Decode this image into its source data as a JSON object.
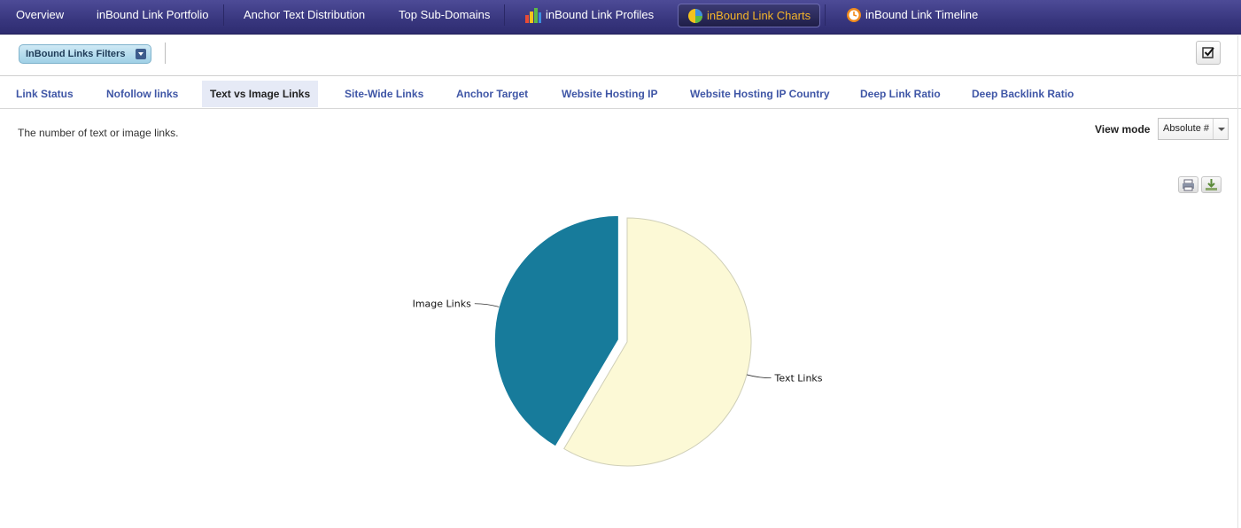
{
  "top_nav": {
    "items": [
      {
        "label": "Overview"
      },
      {
        "label": "inBound Link Portfolio"
      },
      {
        "label": "Anchor Text Distribution"
      },
      {
        "label": "Top Sub-Domains"
      },
      {
        "label": "inBound Link Profiles",
        "icon": "bar-chart-icon"
      },
      {
        "label": "inBound Link Charts",
        "icon": "pie-chart-icon",
        "active": true
      },
      {
        "label": "inBound Link Timeline",
        "icon": "clock-icon"
      }
    ]
  },
  "filter_bar": {
    "filter_button_label": "InBound Links Filters",
    "check_icon": "checkbox-icon"
  },
  "tabs": [
    {
      "label": "Link Status"
    },
    {
      "label": "Nofollow links"
    },
    {
      "label": "Text vs Image Links",
      "active": true
    },
    {
      "label": "Site-Wide Links"
    },
    {
      "label": "Anchor Target"
    },
    {
      "label": "Website Hosting IP"
    },
    {
      "label": "Website Hosting IP Country"
    },
    {
      "label": "Deep Link Ratio"
    },
    {
      "label": "Deep Backlink Ratio"
    }
  ],
  "content": {
    "description": "The number of text or image links.",
    "view_mode_label": "View mode",
    "view_mode_value": "Absolute #",
    "print_icon": "print-icon",
    "download_icon": "download-icon"
  },
  "colors": {
    "nav_bg": "#38367e",
    "active_nav_text": "#f5b52a",
    "tab_link": "#3f56a6",
    "image_slice": "#177b9b",
    "text_slice": "#fcf9d6"
  },
  "chart_data": {
    "type": "pie",
    "slices": [
      {
        "label": "Image Links",
        "value": 41.5
      },
      {
        "label": "Text Links",
        "value": 58.5
      }
    ],
    "exploded": "Image Links"
  }
}
